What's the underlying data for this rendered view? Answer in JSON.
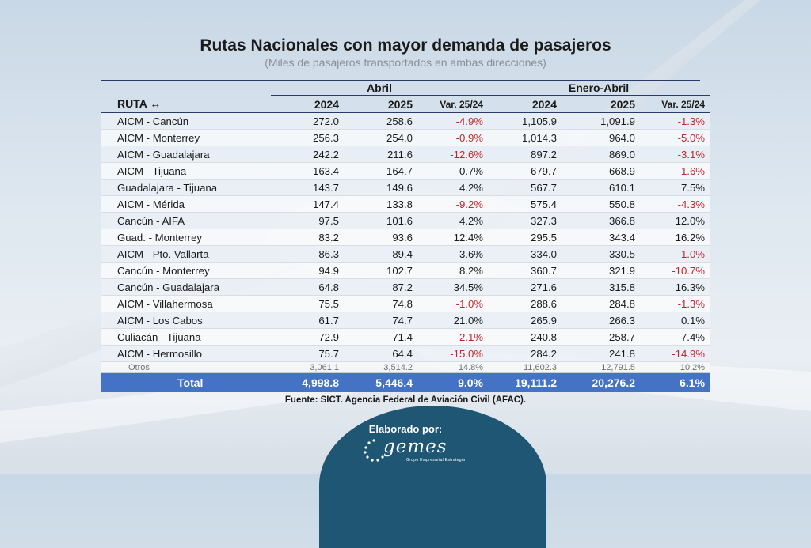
{
  "title": "Rutas Nacionales con mayor demanda de pasajeros",
  "subtitle": "(Miles de pasajeros transportados en ambas direcciones)",
  "header": {
    "group_abril": "Abril",
    "group_enero_abril": "Enero-Abril",
    "ruta": "RUTA ↔",
    "y2024": "2024",
    "y2025": "2025",
    "var": "Var. 25/24"
  },
  "rows": [
    {
      "ruta": "AICM - Cancún",
      "a2024": "272.0",
      "a2025": "258.6",
      "avar": "-4.9%",
      "e2024": "1,105.9",
      "e2025": "1,091.9",
      "evar": "-1.3%"
    },
    {
      "ruta": "AICM - Monterrey",
      "a2024": "256.3",
      "a2025": "254.0",
      "avar": "-0.9%",
      "e2024": "1,014.3",
      "e2025": "964.0",
      "evar": "-5.0%"
    },
    {
      "ruta": "AICM - Guadalajara",
      "a2024": "242.2",
      "a2025": "211.6",
      "avar": "-12.6%",
      "e2024": "897.2",
      "e2025": "869.0",
      "evar": "-3.1%"
    },
    {
      "ruta": "AICM - Tijuana",
      "a2024": "163.4",
      "a2025": "164.7",
      "avar": "0.7%",
      "e2024": "679.7",
      "e2025": "668.9",
      "evar": "-1.6%"
    },
    {
      "ruta": "Guadalajara - Tijuana",
      "a2024": "143.7",
      "a2025": "149.6",
      "avar": "4.2%",
      "e2024": "567.7",
      "e2025": "610.1",
      "evar": "7.5%"
    },
    {
      "ruta": "AICM - Mérida",
      "a2024": "147.4",
      "a2025": "133.8",
      "avar": "-9.2%",
      "e2024": "575.4",
      "e2025": "550.8",
      "evar": "-4.3%"
    },
    {
      "ruta": "Cancún - AIFA",
      "a2024": "97.5",
      "a2025": "101.6",
      "avar": "4.2%",
      "e2024": "327.3",
      "e2025": "366.8",
      "evar": "12.0%"
    },
    {
      "ruta": "Guad. - Monterrey",
      "a2024": "83.2",
      "a2025": "93.6",
      "avar": "12.4%",
      "e2024": "295.5",
      "e2025": "343.4",
      "evar": "16.2%"
    },
    {
      "ruta": "AICM - Pto. Vallarta",
      "a2024": "86.3",
      "a2025": "89.4",
      "avar": "3.6%",
      "e2024": "334.0",
      "e2025": "330.5",
      "evar": "-1.0%"
    },
    {
      "ruta": "Cancún - Monterrey",
      "a2024": "94.9",
      "a2025": "102.7",
      "avar": "8.2%",
      "e2024": "360.7",
      "e2025": "321.9",
      "evar": "-10.7%"
    },
    {
      "ruta": "Cancún - Guadalajara",
      "a2024": "64.8",
      "a2025": "87.2",
      "avar": "34.5%",
      "e2024": "271.6",
      "e2025": "315.8",
      "evar": "16.3%"
    },
    {
      "ruta": "AICM - Villahermosa",
      "a2024": "75.5",
      "a2025": "74.8",
      "avar": "-1.0%",
      "e2024": "288.6",
      "e2025": "284.8",
      "evar": "-1.3%"
    },
    {
      "ruta": "AICM - Los Cabos",
      "a2024": "61.7",
      "a2025": "74.7",
      "avar": "21.0%",
      "e2024": "265.9",
      "e2025": "266.3",
      "evar": "0.1%"
    },
    {
      "ruta": "Culiacán - Tijuana",
      "a2024": "72.9",
      "a2025": "71.4",
      "avar": "-2.1%",
      "e2024": "240.8",
      "e2025": "258.7",
      "evar": "7.4%"
    },
    {
      "ruta": "AICM - Hermosillo",
      "a2024": "75.7",
      "a2025": "64.4",
      "avar": "-15.0%",
      "e2024": "284.2",
      "e2025": "241.8",
      "evar": "-14.9%"
    }
  ],
  "otros": {
    "ruta": "Otros",
    "a2024": "3,061.1",
    "a2025": "3,514.2",
    "avar": "14.8%",
    "e2024": "11,602.3",
    "e2025": "12,791.5",
    "evar": "10.2%"
  },
  "total": {
    "ruta": "Total",
    "a2024": "4,998.8",
    "a2025": "5,446.4",
    "avar": "9.0%",
    "e2024": "19,111.2",
    "e2025": "20,276.2",
    "evar": "6.1%"
  },
  "fuente": "Fuente: SICT. Agencia Federal de Aviación Civil (AFAC).",
  "elaborado": "Elaborado por:",
  "logo": {
    "word": "gemes",
    "tagline": "Grupo Empresarial Estrategia"
  },
  "colors": {
    "negative": "#c0262d",
    "total_bg": "#4472c4",
    "badge_bg": "#1f5674",
    "rule": "#2a3a6a"
  },
  "icons": [
    "bidirectional-arrow-icon",
    "gemes-logo-icon",
    "airplane-background-icon"
  ]
}
